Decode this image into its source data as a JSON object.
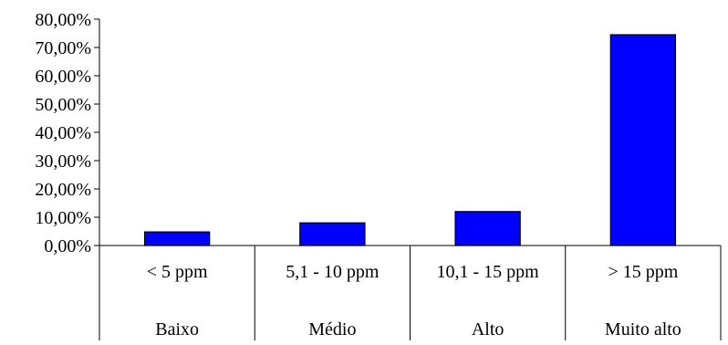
{
  "chart_data": {
    "type": "bar",
    "title": "",
    "xlabel": "",
    "ylabel": "",
    "categories": [
      "< 5 ppm",
      "5,1 - 10 ppm",
      "10,1 - 15 ppm",
      "> 15 ppm"
    ],
    "category_groups": [
      "Baixo",
      "Médio",
      "Alto",
      "Muito alto"
    ],
    "values": [
      4.8,
      8.0,
      12.0,
      74.5
    ],
    "ylim": [
      0,
      80
    ],
    "yticks": [
      0,
      10,
      20,
      30,
      40,
      50,
      60,
      70,
      80
    ],
    "ytick_labels": [
      "0,00%",
      "10,00%",
      "20,00%",
      "30,00%",
      "40,00%",
      "50,00%",
      "60,00%",
      "70,00%",
      "80,00%"
    ],
    "grid": false,
    "legend": "none",
    "bar_color": "#0000FF",
    "bar_edge_color": "#000000"
  }
}
